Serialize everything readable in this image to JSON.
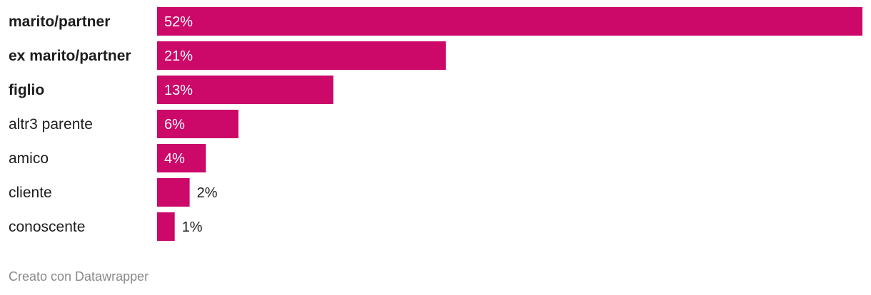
{
  "chart_data": {
    "type": "bar",
    "orientation": "horizontal",
    "categories": [
      "marito/partner",
      "ex marito/partner",
      "figlio",
      "altr3 parente",
      "amico",
      "cliente",
      "conoscente"
    ],
    "bold_categories": [
      "marito/partner",
      "ex marito/partner",
      "figlio"
    ],
    "values": [
      52,
      21.3,
      13,
      6,
      3.6,
      2.4,
      1.3
    ],
    "labels": [
      "52%",
      "21%",
      "13%",
      "6%",
      "4%",
      "2%",
      "1%"
    ],
    "unit": "%",
    "xlim": [
      0,
      52
    ],
    "grid": false,
    "bar_color": "#cc0868",
    "title": "",
    "xlabel": "",
    "ylabel": ""
  },
  "footer": "Creato con Datawrapper"
}
